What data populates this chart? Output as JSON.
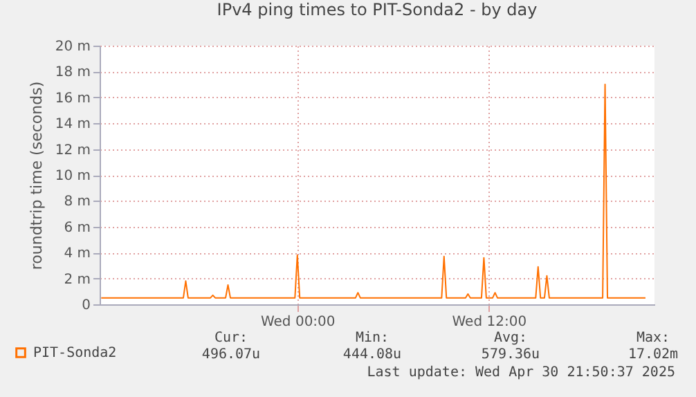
{
  "chart_data": {
    "type": "line",
    "title": "IPv4 ping times to PIT-Sonda2 - by day",
    "ylabel": "roundtrip time (seconds)",
    "xlim": [
      "2025-04-29T11:36",
      "2025-04-30T22:24"
    ],
    "xticks": [
      {
        "value": "2025-04-30T00:00",
        "label": "Wed 00:00"
      },
      {
        "value": "2025-04-30T12:00",
        "label": "Wed 12:00"
      }
    ],
    "ylim": [
      0,
      20
    ],
    "yticks": [
      {
        "value": 0,
        "label": "0"
      },
      {
        "value": 2,
        "label": "2 m"
      },
      {
        "value": 4,
        "label": "4 m"
      },
      {
        "value": 6,
        "label": "6 m"
      },
      {
        "value": 8,
        "label": "8 m"
      },
      {
        "value": 10,
        "label": "10 m"
      },
      {
        "value": 12,
        "label": "12 m"
      },
      {
        "value": 14,
        "label": "14 m"
      },
      {
        "value": 16,
        "label": "16 m"
      },
      {
        "value": 18,
        "label": "18 m"
      },
      {
        "value": 20,
        "label": "20 m"
      }
    ],
    "grid": true,
    "legend": "bottom left",
    "marker": "none",
    "line_style": "solid",
    "series": [
      {
        "name": "PIT-Sonda2",
        "color": "#ff7000",
        "x": [
          "2025-04-29T11:42",
          "2025-04-29T16:51",
          "2025-04-29T17:00",
          "2025-04-29T17:09",
          "2025-04-29T18:33",
          "2025-04-29T18:42",
          "2025-04-29T18:51",
          "2025-04-29T19:30",
          "2025-04-29T19:39",
          "2025-04-29T19:48",
          "2025-04-29T23:51",
          "2025-04-30T00:00",
          "2025-04-30T00:09",
          "2025-04-30T03:39",
          "2025-04-30T03:48",
          "2025-04-30T03:57",
          "2025-04-30T09:03",
          "2025-04-30T09:12",
          "2025-04-30T09:21",
          "2025-04-30T10:33",
          "2025-04-30T10:42",
          "2025-04-30T10:51",
          "2025-04-30T11:33",
          "2025-04-30T11:42",
          "2025-04-30T11:51",
          "2025-04-30T12:15",
          "2025-04-30T12:24",
          "2025-04-30T12:33",
          "2025-04-30T14:57",
          "2025-04-30T15:06",
          "2025-04-30T15:15",
          "2025-04-30T15:30",
          "2025-04-30T15:39",
          "2025-04-30T15:48",
          "2025-04-30T19:09",
          "2025-04-30T19:18",
          "2025-04-30T19:27",
          "2025-04-30T21:50"
        ],
        "values": [
          0.5,
          0.5,
          1.8,
          0.5,
          0.5,
          0.7,
          0.5,
          0.5,
          1.5,
          0.5,
          0.5,
          3.8,
          0.5,
          0.5,
          0.9,
          0.5,
          0.5,
          3.7,
          0.5,
          0.5,
          0.8,
          0.5,
          0.5,
          3.6,
          0.5,
          0.5,
          0.9,
          0.5,
          0.5,
          2.9,
          0.5,
          0.5,
          2.2,
          0.5,
          0.5,
          17.0,
          0.5,
          0.5
        ]
      }
    ],
    "annotations": [
      "Cur:",
      "496.07u",
      "Min:",
      "444.08u",
      "Avg:",
      "579.36u",
      "Max:",
      "17.02m",
      "Last update: Wed Apr 30 21:50:37 2025"
    ]
  }
}
